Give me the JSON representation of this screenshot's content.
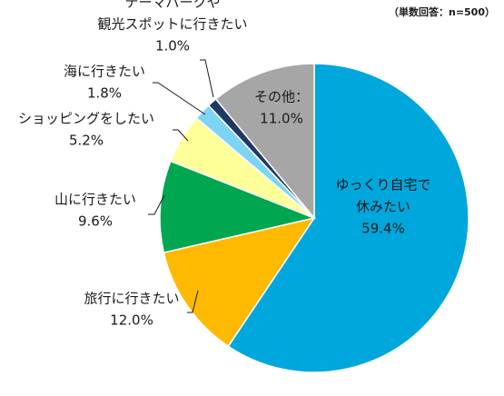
{
  "chart_data": {
    "type": "pie",
    "note": "（単数回答：n=500）",
    "slices": [
      {
        "label": "ゆっくり自宅で休みたい",
        "label_lines": [
          "ゆっくり自宅で",
          "休みたい"
        ],
        "value": 59.4,
        "value_label": "59.4%",
        "color": "#00a7dc"
      },
      {
        "label": "旅行に行きたい",
        "label_lines": [
          "旅行に行きたい"
        ],
        "value": 12.0,
        "value_label": "12.0%",
        "color": "#ffb900"
      },
      {
        "label": "山に行きたい",
        "label_lines": [
          "山に行きたい"
        ],
        "value": 9.6,
        "value_label": "9.6%",
        "color": "#00a650"
      },
      {
        "label": "ショッピングをしたい",
        "label_lines": [
          "ショッピングをしたい"
        ],
        "value": 5.2,
        "value_label": "5.2%",
        "color": "#ffff99"
      },
      {
        "label": "海に行きたい",
        "label_lines": [
          "海に行きたい"
        ],
        "value": 1.8,
        "value_label": "1.8%",
        "color": "#7ed4f5"
      },
      {
        "label": "テーマパークや観光スポットに行きたい",
        "label_lines": [
          "テーマパークや",
          "観光スポットに行きたい"
        ],
        "value": 1.0,
        "value_label": "1.0%",
        "color": "#1f3864"
      },
      {
        "label": "その他",
        "label_lines": [
          "その他："
        ],
        "value": 11.0,
        "value_label": "11.0%",
        "color": "#a6a6a6"
      }
    ]
  }
}
